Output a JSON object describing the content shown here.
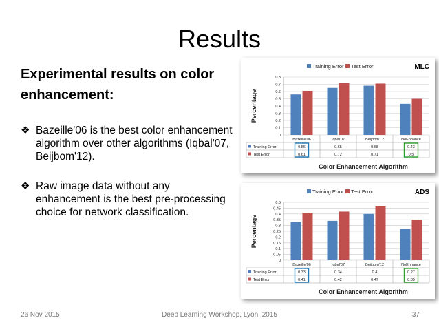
{
  "slide": {
    "title": "Results",
    "heading": "Experimental results on color enhancement:",
    "bullets": [
      "Bazeille'06 is the best color enhancement algorithm over other algorithms (Iqbal'07, Beijbom'12).",
      "Raw image data without any enhancement is the best pre-processing choice for network classification."
    ],
    "bullet_icon": "diamond-bullet-icon"
  },
  "footer": {
    "date": "26 Nov 2015",
    "event": "Deep Learning Workshop, Lyon, 2015",
    "page": "37"
  },
  "colors": {
    "training": "#4F81BD",
    "test": "#C0504D",
    "highlight_blue": "#1F77B4",
    "highlight_green": "#2CA02C"
  },
  "chart_data": [
    {
      "type": "bar",
      "title": "MLC",
      "ylabel": "Percentage",
      "xlabel": "Color Enhancement Algorithm",
      "categories": [
        "Bazeille'06",
        "Iqbal'07",
        "Beijbom'12",
        "NoEnhance"
      ],
      "series": [
        {
          "name": "Training Error",
          "values": [
            0.56,
            0.65,
            0.68,
            0.43
          ]
        },
        {
          "name": "Test Error",
          "values": [
            0.61,
            0.72,
            0.71,
            0.5
          ]
        }
      ],
      "table_values": [
        [
          "0.56",
          "0.65",
          "0.68",
          "0.43"
        ],
        [
          "0.61",
          "0.72",
          "0.71",
          "0.5"
        ]
      ],
      "yticks": [
        "0",
        "0.1",
        "0.2",
        "0.3",
        "0.4",
        "0.5",
        "0.6",
        "0.7",
        "0.8"
      ],
      "ylim": [
        0,
        0.8
      ],
      "highlight": {
        "blue_category": 0,
        "green_category": 3
      },
      "grid": true,
      "legend": "top"
    },
    {
      "type": "bar",
      "title": "ADS",
      "ylabel": "Percentage",
      "xlabel": "Color Enhancement Algorithm",
      "categories": [
        "Bazeille'06",
        "Iqbal'07",
        "Beijbom'12",
        "NoEnhance"
      ],
      "series": [
        {
          "name": "Training Error",
          "values": [
            0.33,
            0.34,
            0.4,
            0.27
          ]
        },
        {
          "name": "Test Error",
          "values": [
            0.41,
            0.42,
            0.47,
            0.35
          ]
        }
      ],
      "table_values": [
        [
          "0.33",
          "0.34",
          "0.4",
          "0.27"
        ],
        [
          "0.41",
          "0.42",
          "0.47",
          "0.35"
        ]
      ],
      "yticks": [
        "0",
        "0.05",
        "0.1",
        "0.15",
        "0.2",
        "0.25",
        "0.3",
        "0.35",
        "0.4",
        "0.45",
        "0.5"
      ],
      "ylim": [
        0,
        0.5
      ],
      "highlight": {
        "blue_category": 0,
        "green_category": 3
      },
      "grid": true,
      "legend": "top"
    }
  ]
}
